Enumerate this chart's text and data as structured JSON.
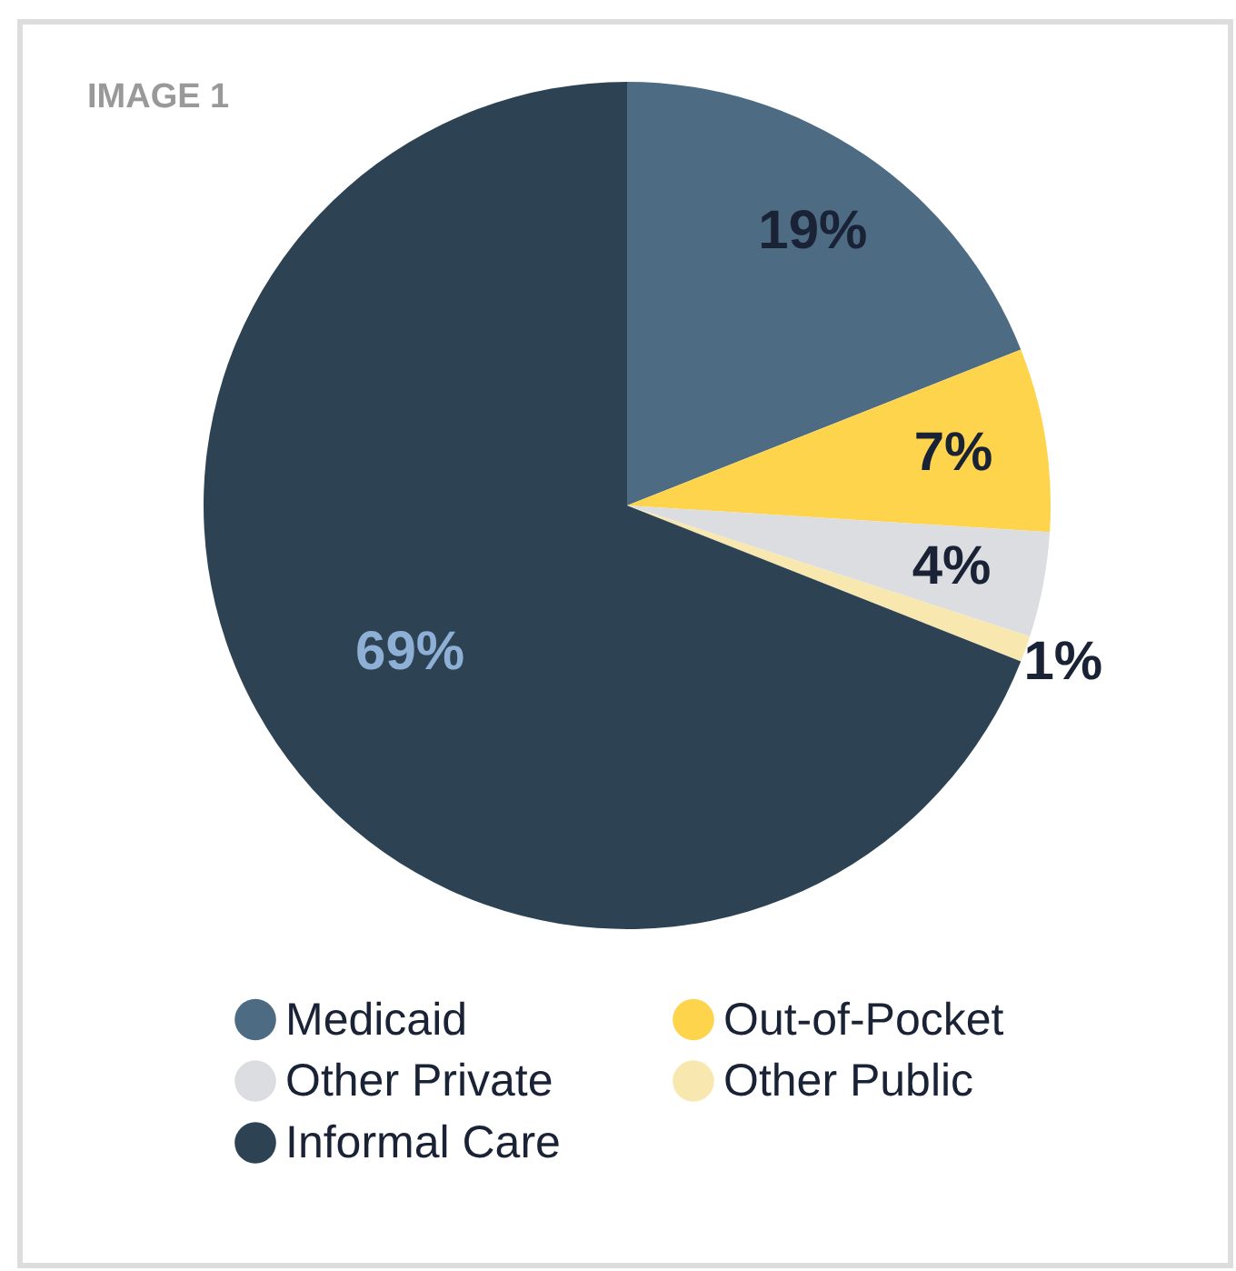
{
  "chart_data": {
    "type": "pie",
    "title": "IMAGE 1",
    "categories": [
      "Medicaid",
      "Out-of-Pocket",
      "Other Private",
      "Other Public",
      "Informal Care"
    ],
    "values": [
      19,
      7,
      4,
      1,
      69
    ],
    "colors": [
      "#4e6b84",
      "#fdd44c",
      "#dcdde0",
      "#f8e8b0",
      "#2d4354"
    ],
    "value_labels": [
      "19%",
      "7%",
      "4%",
      "1%",
      "69%"
    ],
    "legend": "bottom"
  }
}
